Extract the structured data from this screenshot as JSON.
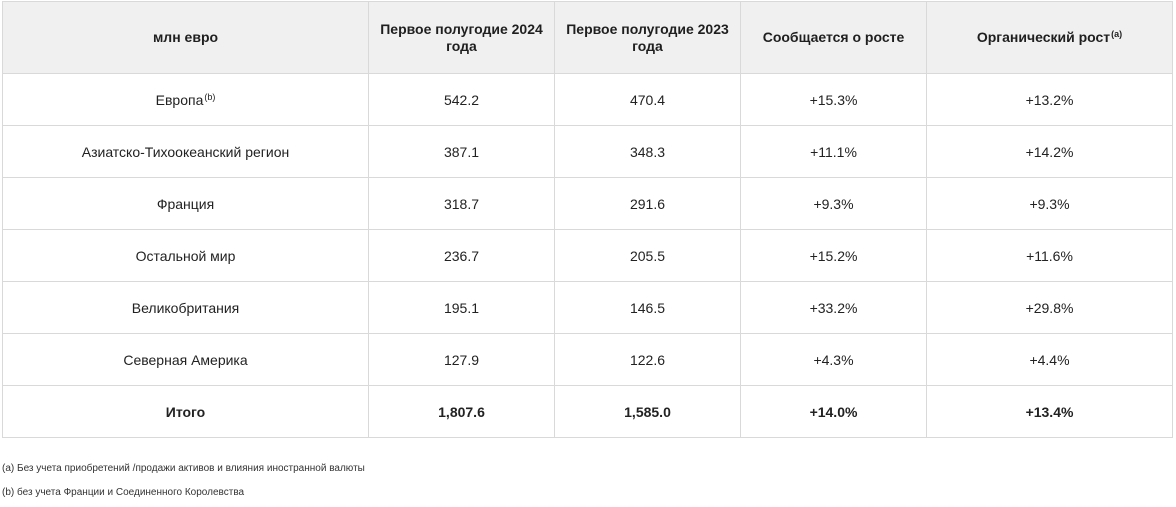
{
  "table": {
    "headers": [
      {
        "label": "млн евро",
        "sup": ""
      },
      {
        "label": "Первое полугодие 2024 года",
        "sup": ""
      },
      {
        "label": "Первое полугодие 2023 года",
        "sup": ""
      },
      {
        "label": "Сообщается о росте",
        "sup": ""
      },
      {
        "label": "Органический рост",
        "sup": "(a)"
      }
    ],
    "rows": [
      {
        "region": "Европа",
        "sup": "(b)",
        "h1_2024": "542.2",
        "h1_2023": "470.4",
        "reported": "+15.3%",
        "organic": "+13.2%"
      },
      {
        "region": "Азиатско-Тихоокеанский регион",
        "sup": "",
        "h1_2024": "387.1",
        "h1_2023": "348.3",
        "reported": "+11.1%",
        "organic": "+14.2%"
      },
      {
        "region": "Франция",
        "sup": "",
        "h1_2024": "318.7",
        "h1_2023": "291.6",
        "reported": "+9.3%",
        "organic": "+9.3%"
      },
      {
        "region": "Остальной мир",
        "sup": "",
        "h1_2024": "236.7",
        "h1_2023": "205.5",
        "reported": "+15.2%",
        "organic": "+11.6%"
      },
      {
        "region": "Великобритания",
        "sup": "",
        "h1_2024": "195.1",
        "h1_2023": "146.5",
        "reported": "+33.2%",
        "organic": "+29.8%"
      },
      {
        "region": "Северная Америка",
        "sup": "",
        "h1_2024": "127.9",
        "h1_2023": "122.6",
        "reported": "+4.3%",
        "organic": "+4.4%"
      }
    ],
    "total": {
      "region": "Итого",
      "h1_2024": "1,807.6",
      "h1_2023": "1,585.0",
      "reported": "+14.0%",
      "organic": "+13.4%"
    }
  },
  "footnotes": {
    "a": "(a) Без учета приобретений /продажи активов и влияния иностранной валюты",
    "b": "(b) без учета Франции и Соединенного Королевства"
  },
  "colors": {
    "header_bg": "#f0f0f0",
    "border": "#d9d9d9",
    "text": "#1f1f1f"
  }
}
